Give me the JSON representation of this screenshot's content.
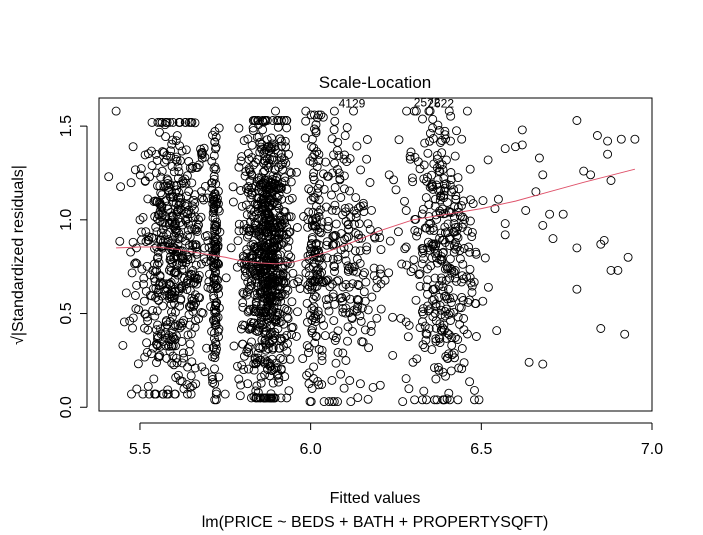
{
  "chart_data": {
    "type": "scatter",
    "title": "Scale-Location",
    "xlabel": "Fitted values",
    "subtitle": "lm(PRICE ~ BEDS + BATH + PROPERTYSQFT)",
    "ylabel": "√|Standardized residuals|",
    "xlim": [
      5.38,
      7.0
    ],
    "ylim": [
      -0.02,
      1.65
    ],
    "x_ticks": [
      5.5,
      6.0,
      6.5,
      7.0
    ],
    "x_tick_labels": [
      "5.5",
      "6.0",
      "6.5",
      "7.0"
    ],
    "y_ticks": [
      0.0,
      0.5,
      1.0,
      1.5
    ],
    "y_tick_labels": [
      "0.0",
      "0.5",
      "1.0",
      "1.5"
    ],
    "grid": false,
    "point_color": "#000000",
    "smooth_color": "#df536b",
    "clusters": [
      {
        "center": 5.6,
        "spread": 0.055,
        "count": 550,
        "y_min": 0.07,
        "y_max": 1.52
      },
      {
        "center": 5.72,
        "spread": 0.006,
        "count": 150,
        "y_min": 0.04,
        "y_max": 1.49
      },
      {
        "center": 5.82,
        "spread": 0.018,
        "count": 120,
        "y_min": 0.05,
        "y_max": 1.49
      },
      {
        "center": 5.88,
        "spread": 0.03,
        "count": 700,
        "y_min": 0.05,
        "y_max": 1.53
      },
      {
        "center": 6.01,
        "spread": 0.01,
        "count": 120,
        "y_min": 0.1,
        "y_max": 1.56
      },
      {
        "center": 6.1,
        "spread": 0.06,
        "count": 260,
        "y_min": 0.03,
        "y_max": 1.58
      },
      {
        "center": 6.38,
        "spread": 0.05,
        "count": 360,
        "y_min": 0.04,
        "y_max": 1.58
      }
    ],
    "sparse_points": [
      {
        "x": 5.43,
        "y": 1.58
      },
      {
        "x": 5.46,
        "y": 0.61
      },
      {
        "x": 5.47,
        "y": 0.46
      },
      {
        "x": 5.45,
        "y": 0.33
      },
      {
        "x": 5.48,
        "y": 1.39
      },
      {
        "x": 5.48,
        "y": 0.88
      },
      {
        "x": 5.49,
        "y": 0.85
      },
      {
        "x": 5.5,
        "y": 1.0
      },
      {
        "x": 6.52,
        "y": 1.32
      },
      {
        "x": 6.54,
        "y": 1.06
      },
      {
        "x": 6.55,
        "y": 1.11
      },
      {
        "x": 6.57,
        "y": 1.38
      },
      {
        "x": 6.57,
        "y": 0.98
      },
      {
        "x": 6.57,
        "y": 0.92
      },
      {
        "x": 6.6,
        "y": 1.39
      },
      {
        "x": 6.62,
        "y": 1.48
      },
      {
        "x": 6.62,
        "y": 1.4
      },
      {
        "x": 6.63,
        "y": 1.05
      },
      {
        "x": 6.64,
        "y": 0.24
      },
      {
        "x": 6.66,
        "y": 1.15
      },
      {
        "x": 6.67,
        "y": 1.33
      },
      {
        "x": 6.68,
        "y": 0.23
      },
      {
        "x": 6.68,
        "y": 1.24
      },
      {
        "x": 6.68,
        "y": 0.97
      },
      {
        "x": 6.7,
        "y": 1.03
      },
      {
        "x": 6.71,
        "y": 0.9
      },
      {
        "x": 6.74,
        "y": 1.03
      },
      {
        "x": 6.78,
        "y": 1.53
      },
      {
        "x": 6.78,
        "y": 0.85
      },
      {
        "x": 6.78,
        "y": 0.63
      },
      {
        "x": 6.8,
        "y": 1.26
      },
      {
        "x": 6.82,
        "y": 1.24
      },
      {
        "x": 6.84,
        "y": 1.45
      },
      {
        "x": 6.85,
        "y": 0.42
      },
      {
        "x": 6.85,
        "y": 0.87
      },
      {
        "x": 6.86,
        "y": 0.89
      },
      {
        "x": 6.87,
        "y": 1.42
      },
      {
        "x": 6.87,
        "y": 1.35
      },
      {
        "x": 6.88,
        "y": 0.73
      },
      {
        "x": 6.88,
        "y": 1.21
      },
      {
        "x": 6.9,
        "y": 0.73
      },
      {
        "x": 6.91,
        "y": 1.43
      },
      {
        "x": 6.92,
        "y": 0.39
      },
      {
        "x": 6.93,
        "y": 0.8
      },
      {
        "x": 6.95,
        "y": 1.43
      },
      {
        "x": 6.23,
        "y": 1.24
      },
      {
        "x": 6.25,
        "y": 1.16
      },
      {
        "x": 6.24,
        "y": 0.48
      },
      {
        "x": 6.3,
        "y": 0.24
      },
      {
        "x": 6.28,
        "y": 1.05
      },
      {
        "x": 6.48,
        "y": 0.04
      },
      {
        "x": 6.48,
        "y": 0.09
      }
    ],
    "smooth_line": {
      "x": [
        5.43,
        5.5,
        5.55,
        5.6,
        5.65,
        5.7,
        5.75,
        5.8,
        5.85,
        5.9,
        5.95,
        6.0,
        6.05,
        6.1,
        6.15,
        6.2,
        6.3,
        6.4,
        6.5,
        6.6,
        6.7,
        6.8,
        6.95
      ],
      "y": [
        0.85,
        0.855,
        0.855,
        0.845,
        0.83,
        0.815,
        0.8,
        0.78,
        0.77,
        0.765,
        0.775,
        0.8,
        0.83,
        0.865,
        0.9,
        0.94,
        1.0,
        1.03,
        1.06,
        1.1,
        1.15,
        1.2,
        1.27
      ]
    },
    "annotations": [
      {
        "text": "4129",
        "x": 6.16,
        "y": 1.6
      },
      {
        "text": "2572",
        "x": 6.38,
        "y": 1.605
      },
      {
        "text": "2622",
        "x": 6.42,
        "y": 1.6
      }
    ]
  }
}
